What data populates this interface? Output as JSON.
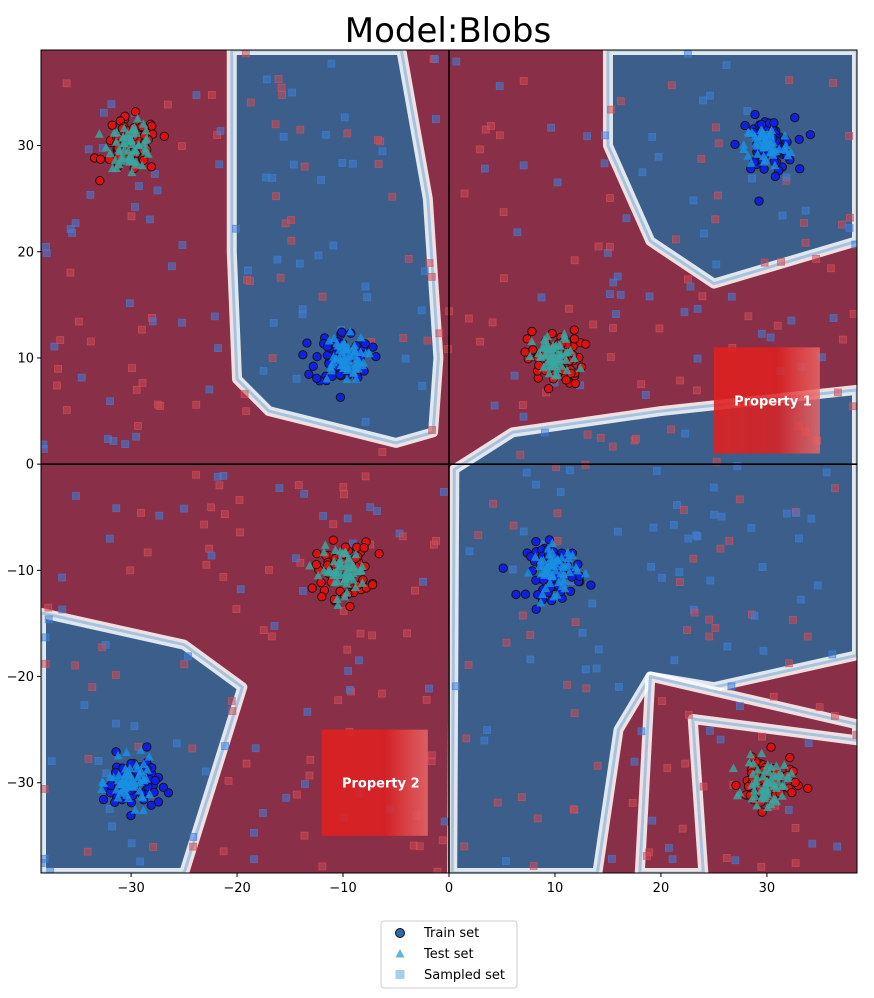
{
  "chart_data": {
    "type": "scatter",
    "title": "Model:Blobs",
    "xlabel": "",
    "ylabel": "",
    "xlim": [
      -38.5,
      38.5
    ],
    "ylim": [
      -38.5,
      39
    ],
    "x_ticks": [
      -30,
      -20,
      -10,
      0,
      10,
      20,
      30
    ],
    "y_ticks": [
      -30,
      -20,
      -10,
      0,
      10,
      20,
      30
    ],
    "x_tick_labels": [
      "−30",
      "−20",
      "−10",
      "0",
      "10",
      "20",
      "30"
    ],
    "y_tick_labels": [
      "−30",
      "−20",
      "−10",
      "0",
      "10",
      "20",
      "30"
    ],
    "grid": false,
    "axis_lines": [
      0,
      0
    ],
    "legend_position": "bottom-center",
    "background": "decision-boundary contour (red = class 0, blue = class 1)",
    "colors": {
      "red_region": "#8a2f48",
      "blue_region": "#3b5f8a",
      "boundary": "#ffffff",
      "train_class0": "#e01010",
      "train_class1": "#1020e0",
      "test_class0": "#3aa6a0",
      "test_class1": "#1a8fe0",
      "sampled": "#5aa0d8",
      "property_box": "#e02020"
    },
    "blobs": [
      {
        "center": [
          -30,
          30
        ],
        "class": 0
      },
      {
        "center": [
          30,
          30
        ],
        "class": 1
      },
      {
        "center": [
          -10,
          10
        ],
        "class": 1
      },
      {
        "center": [
          10,
          10
        ],
        "class": 0
      },
      {
        "center": [
          -10,
          -10
        ],
        "class": 0
      },
      {
        "center": [
          10,
          -10
        ],
        "class": 1
      },
      {
        "center": [
          -30,
          -30
        ],
        "class": 1
      },
      {
        "center": [
          30,
          -30
        ],
        "class": 0
      }
    ],
    "series": [
      {
        "name": "Train set",
        "marker": "circle"
      },
      {
        "name": "Test set",
        "marker": "triangle"
      },
      {
        "name": "Sampled set",
        "marker": "square"
      }
    ],
    "annotations": [
      {
        "label": "Property 1",
        "x_range": [
          25,
          35
        ],
        "y_range": [
          1,
          11
        ]
      },
      {
        "label": "Property 2",
        "x_range": [
          -12,
          -2
        ],
        "y_range": [
          -35,
          -25
        ]
      }
    ]
  }
}
